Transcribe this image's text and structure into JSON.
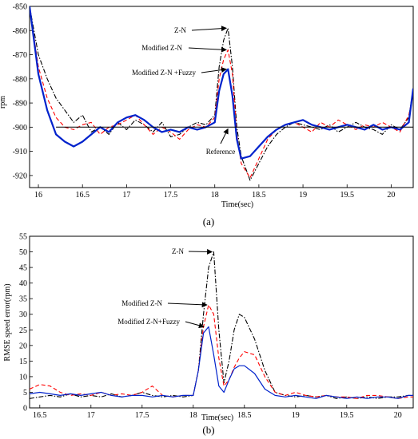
{
  "chart_data": [
    {
      "type": "line",
      "title": "",
      "caption": "(a)",
      "xlabel": "Time(sec)",
      "ylabel": "rpm",
      "xlim": [
        15.9,
        20.25
      ],
      "ylim": [
        -925,
        -850
      ],
      "grid": false,
      "xticks": [
        {
          "v": 16,
          "t": "16"
        },
        {
          "v": 16.5,
          "t": "16.5"
        },
        {
          "v": 17,
          "t": "17"
        },
        {
          "v": 17.5,
          "t": "17.5"
        },
        {
          "v": 18,
          "t": "18"
        },
        {
          "v": 18.5,
          "t": "18.5"
        },
        {
          "v": 19,
          "t": "19"
        },
        {
          "v": 19.5,
          "t": "19.5"
        },
        {
          "v": 20,
          "t": "20"
        }
      ],
      "yticks": [
        {
          "v": -850,
          "t": "-850"
        },
        {
          "v": -860,
          "t": "-860"
        },
        {
          "v": -870,
          "t": "-870"
        },
        {
          "v": -880,
          "t": "-880"
        },
        {
          "v": -890,
          "t": "-890"
        },
        {
          "v": -900,
          "t": "-900"
        },
        {
          "v": -910,
          "t": "-910"
        },
        {
          "v": -920,
          "t": "-920"
        }
      ],
      "series": [
        {
          "name": "Z-N",
          "color": "#000000",
          "dash": "6,2,1.5,2",
          "width": 1.1,
          "x": [
            15.9,
            16.0,
            16.1,
            16.2,
            16.3,
            16.4,
            16.5,
            16.6,
            16.7,
            16.8,
            16.9,
            17.0,
            17.1,
            17.2,
            17.3,
            17.4,
            17.5,
            17.6,
            17.7,
            17.8,
            17.9,
            18.0,
            18.05,
            18.1,
            18.15,
            18.2,
            18.25,
            18.3,
            18.4,
            18.5,
            18.6,
            18.7,
            18.8,
            18.9,
            19.0,
            19.1,
            19.2,
            19.3,
            19.4,
            19.5,
            19.6,
            19.7,
            19.8,
            19.9,
            20.0,
            20.1,
            20.2,
            20.25
          ],
          "y": [
            -850,
            -870,
            -880,
            -888,
            -893,
            -898,
            -895,
            -902,
            -900,
            -903,
            -898,
            -901,
            -897,
            -899,
            -902,
            -898,
            -904,
            -903,
            -900,
            -898,
            -899,
            -895,
            -875,
            -864,
            -859,
            -875,
            -900,
            -912,
            -922,
            -915,
            -908,
            -903,
            -900,
            -898,
            -899,
            -900,
            -901,
            -899,
            -902,
            -900,
            -898,
            -900,
            -901,
            -903,
            -899,
            -901,
            -896,
            -884
          ]
        },
        {
          "name": "Modified  Z-N",
          "color": "#ff0000",
          "dash": "5,3",
          "width": 1.1,
          "x": [
            15.9,
            16.0,
            16.1,
            16.2,
            16.3,
            16.4,
            16.5,
            16.6,
            16.7,
            16.8,
            16.9,
            17.0,
            17.1,
            17.2,
            17.3,
            17.4,
            17.5,
            17.6,
            17.7,
            17.8,
            17.9,
            18.0,
            18.05,
            18.1,
            18.15,
            18.2,
            18.25,
            18.3,
            18.4,
            18.5,
            18.6,
            18.7,
            18.8,
            18.9,
            19.0,
            19.1,
            19.2,
            19.3,
            19.4,
            19.5,
            19.6,
            19.7,
            19.8,
            19.9,
            20.0,
            20.1,
            20.2,
            20.25
          ],
          "y": [
            -850,
            -875,
            -888,
            -896,
            -900,
            -901,
            -899,
            -898,
            -903,
            -900,
            -899,
            -897,
            -895,
            -899,
            -903,
            -900,
            -902,
            -905,
            -901,
            -899,
            -900,
            -896,
            -880,
            -872,
            -868,
            -878,
            -903,
            -915,
            -921,
            -913,
            -905,
            -901,
            -899,
            -898,
            -900,
            -902,
            -898,
            -900,
            -897,
            -899,
            -901,
            -899,
            -900,
            -898,
            -900,
            -902,
            -895,
            -886
          ]
        },
        {
          "name": "Modified Z-N +Fuzzy",
          "color": "#0022cc",
          "dash": "",
          "width": 2.2,
          "x": [
            15.9,
            16.0,
            16.1,
            16.2,
            16.3,
            16.4,
            16.5,
            16.6,
            16.7,
            16.8,
            16.9,
            17.0,
            17.1,
            17.2,
            17.3,
            17.4,
            17.5,
            17.6,
            17.7,
            17.8,
            17.9,
            18.0,
            18.05,
            18.1,
            18.15,
            18.2,
            18.25,
            18.3,
            18.4,
            18.5,
            18.6,
            18.7,
            18.8,
            18.9,
            19.0,
            19.1,
            19.2,
            19.3,
            19.4,
            19.5,
            19.6,
            19.7,
            19.8,
            19.9,
            20.0,
            20.1,
            20.2,
            20.25
          ],
          "y": [
            -850,
            -878,
            -893,
            -903,
            -906,
            -908,
            -906,
            -903,
            -900,
            -902,
            -898,
            -896,
            -895,
            -897,
            -900,
            -902,
            -901,
            -902,
            -900,
            -901,
            -900,
            -898,
            -885,
            -878,
            -876,
            -887,
            -905,
            -913,
            -912,
            -908,
            -904,
            -901,
            -899,
            -898,
            -897,
            -899,
            -900,
            -901,
            -900,
            -899,
            -900,
            -901,
            -899,
            -901,
            -900,
            -901,
            -898,
            -884
          ]
        },
        {
          "name": "Reference",
          "color": "#000000",
          "dash": "",
          "width": 1.0,
          "x": [
            16.2,
            20.25
          ],
          "y": [
            -900,
            -900
          ]
        }
      ],
      "annotations": [
        {
          "text": "Z-N",
          "x": 18.15,
          "y": -859
        },
        {
          "text": "Modified  Z-N",
          "x": 18.15,
          "y": -868
        },
        {
          "text": "Modified Z-N +Fuzzy",
          "x": 18.15,
          "y": -876
        },
        {
          "text": "Reference",
          "x": 18.15,
          "y": -900
        }
      ]
    },
    {
      "type": "line",
      "title": "",
      "caption": "(b)",
      "xlabel": "Time(sec)",
      "ylabel": "RMSE speed error(rpm)",
      "xlim": [
        16.4,
        20.15
      ],
      "ylim": [
        0,
        55
      ],
      "grid": false,
      "xticks": [
        {
          "v": 16.5,
          "t": "16.5"
        },
        {
          "v": 17,
          "t": "17"
        },
        {
          "v": 17.5,
          "t": "17.5"
        },
        {
          "v": 18,
          "t": "18"
        },
        {
          "v": 18.5,
          "t": "18.5"
        },
        {
          "v": 19,
          "t": "19"
        },
        {
          "v": 19.5,
          "t": "19.5"
        },
        {
          "v": 20,
          "t": "20"
        }
      ],
      "yticks": [
        {
          "v": 0,
          "t": "0"
        },
        {
          "v": 5,
          "t": "5"
        },
        {
          "v": 10,
          "t": "10"
        },
        {
          "v": 15,
          "t": "15"
        },
        {
          "v": 20,
          "t": "20"
        },
        {
          "v": 25,
          "t": "25"
        },
        {
          "v": 30,
          "t": "30"
        },
        {
          "v": 35,
          "t": "35"
        },
        {
          "v": 40,
          "t": "40"
        },
        {
          "v": 45,
          "t": "45"
        },
        {
          "v": 50,
          "t": "50"
        },
        {
          "v": 55,
          "t": "55"
        }
      ],
      "series": [
        {
          "name": "Z-N",
          "color": "#000000",
          "dash": "6,2,1.5,2",
          "width": 1.1,
          "x": [
            16.4,
            16.5,
            16.6,
            16.7,
            16.8,
            16.9,
            17.0,
            17.1,
            17.2,
            17.3,
            17.4,
            17.5,
            17.6,
            17.7,
            17.8,
            17.9,
            18.0,
            18.05,
            18.1,
            18.15,
            18.2,
            18.25,
            18.3,
            18.35,
            18.4,
            18.45,
            18.5,
            18.6,
            18.7,
            18.8,
            18.9,
            19.0,
            19.1,
            19.2,
            19.3,
            19.4,
            19.5,
            19.6,
            19.7,
            19.8,
            19.9,
            20.0,
            20.1,
            20.15
          ],
          "y": [
            3,
            3.5,
            4,
            3.5,
            4.5,
            3.5,
            4,
            3.5,
            4.5,
            3.5,
            4,
            5,
            4,
            3.5,
            4,
            3.5,
            4,
            12,
            30,
            45,
            50,
            25,
            8,
            15,
            25,
            30,
            29,
            22,
            12,
            5,
            4,
            3.5,
            4,
            3.5,
            4,
            3,
            3.5,
            3,
            3.5,
            3,
            3.5,
            3.5,
            4,
            4
          ]
        },
        {
          "name": "Modified  Z-N",
          "color": "#ff0000",
          "dash": "5,3",
          "width": 1.1,
          "x": [
            16.4,
            16.5,
            16.6,
            16.7,
            16.8,
            16.9,
            17.0,
            17.1,
            17.2,
            17.3,
            17.4,
            17.5,
            17.6,
            17.7,
            17.8,
            17.9,
            18.0,
            18.05,
            18.1,
            18.15,
            18.2,
            18.25,
            18.3,
            18.35,
            18.4,
            18.45,
            18.5,
            18.6,
            18.7,
            18.8,
            18.9,
            19.0,
            19.1,
            19.2,
            19.3,
            19.4,
            19.5,
            19.6,
            19.7,
            19.8,
            19.9,
            20.0,
            20.1,
            20.15
          ],
          "y": [
            6,
            7.5,
            7,
            5,
            4,
            4.5,
            4,
            5,
            4,
            4.5,
            4,
            5,
            7,
            4,
            3.5,
            4,
            4,
            12,
            26,
            33,
            30,
            16,
            7,
            9,
            13,
            16,
            18,
            17,
            10,
            5,
            4,
            5,
            4,
            3.5,
            4,
            3.5,
            3.5,
            3,
            4,
            4,
            3.5,
            3,
            3.5,
            3.5
          ]
        },
        {
          "name": "Modified  Z-N+Fuzzy",
          "color": "#0022cc",
          "dash": "",
          "width": 1.2,
          "x": [
            16.4,
            16.5,
            16.6,
            16.7,
            16.8,
            16.9,
            17.0,
            17.1,
            17.2,
            17.3,
            17.4,
            17.5,
            17.6,
            17.7,
            17.8,
            17.9,
            18.0,
            18.05,
            18.1,
            18.15,
            18.2,
            18.25,
            18.3,
            18.35,
            18.4,
            18.45,
            18.5,
            18.6,
            18.7,
            18.8,
            18.9,
            19.0,
            19.1,
            19.2,
            19.3,
            19.4,
            19.5,
            19.6,
            19.7,
            19.8,
            19.9,
            20.0,
            20.1,
            20.15
          ],
          "y": [
            4.5,
            5,
            4.5,
            4,
            4.5,
            4,
            4.5,
            5,
            4,
            3.5,
            4,
            4,
            3.5,
            4,
            3.5,
            4,
            4,
            12,
            24,
            26,
            17,
            7,
            5,
            9,
            12.5,
            13.5,
            13.5,
            11,
            6,
            4,
            3.5,
            4,
            3.5,
            3,
            4,
            3.5,
            3,
            3.5,
            3,
            3.5,
            3.5,
            3,
            4,
            4
          ]
        }
      ],
      "annotations": [
        {
          "text": "Z-N",
          "x": 18.2,
          "y": 50
        },
        {
          "text": "Modified  Z-N",
          "x": 18.15,
          "y": 33
        },
        {
          "text": "Modified  Z-N+Fuzzy",
          "x": 18.12,
          "y": 26
        }
      ]
    }
  ]
}
